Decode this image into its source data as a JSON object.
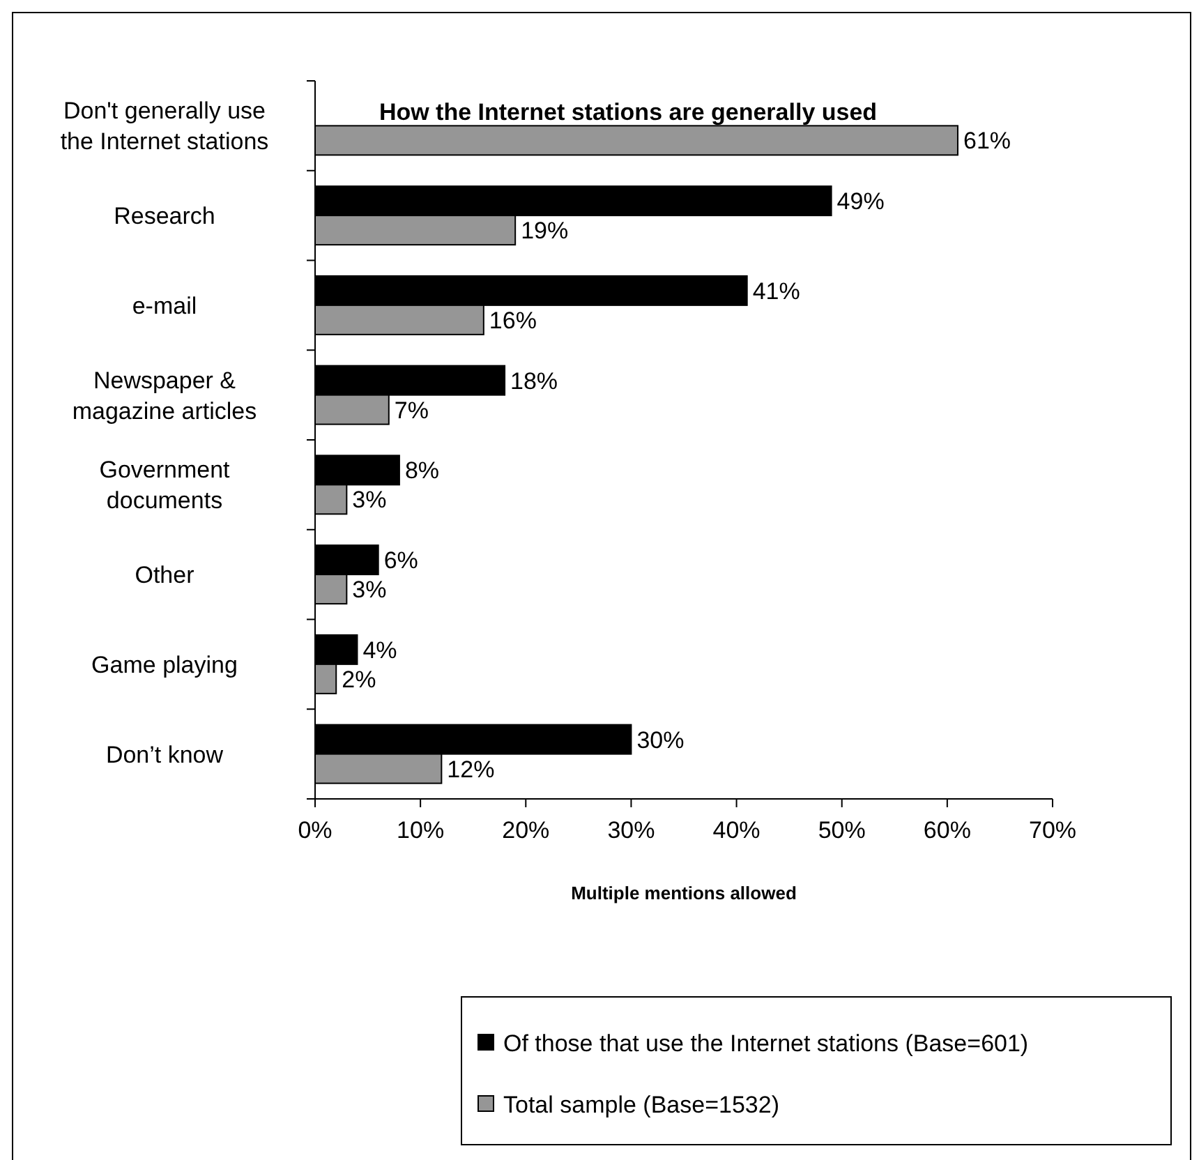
{
  "chart_data": {
    "type": "bar",
    "orientation": "horizontal",
    "title": "How the Internet stations are generally used",
    "xlabel": "Multiple mentions allowed",
    "categories": [
      "Don't generally use the Internet stations",
      "Research",
      "e-mail",
      "Newspaper & magazine articles",
      "Government documents",
      "Other",
      "Game playing",
      "Don’t know"
    ],
    "series": [
      {
        "name": "Of those that use the Internet stations (Base=601)",
        "color": "#000000",
        "values": [
          null,
          49,
          41,
          18,
          8,
          6,
          4,
          30
        ],
        "value_labels": [
          null,
          "49%",
          "41%",
          "18%",
          "8%",
          "6%",
          "4%",
          "30%"
        ]
      },
      {
        "name": "Total sample (Base=1532)",
        "color": "#969696",
        "values": [
          61,
          19,
          16,
          7,
          3,
          3,
          2,
          12
        ],
        "value_labels": [
          "61%",
          "19%",
          "16%",
          "7%",
          "3%",
          "3%",
          "2%",
          "12%"
        ]
      }
    ],
    "xlim": [
      0,
      70
    ],
    "xticks": [
      {
        "value": 0,
        "label": "0%"
      },
      {
        "value": 10,
        "label": "10%"
      },
      {
        "value": 20,
        "label": "20%"
      },
      {
        "value": 30,
        "label": "30%"
      },
      {
        "value": 40,
        "label": "40%"
      },
      {
        "value": 50,
        "label": "50%"
      },
      {
        "value": 60,
        "label": "60%"
      },
      {
        "value": 70,
        "label": "70%"
      }
    ],
    "grid": false,
    "legend": "bottom"
  }
}
